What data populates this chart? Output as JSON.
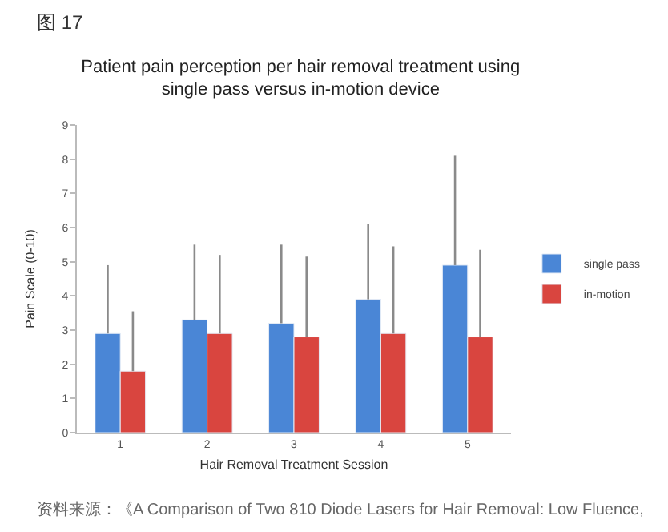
{
  "chart_data": {
    "type": "bar",
    "title": "Patient pain perception per hair removal treatment using\nsingle pass versus in-motion device",
    "xlabel": "Hair Removal Treatment Session",
    "ylabel": "Pain Scale (0-10)",
    "categories": [
      "1",
      "2",
      "3",
      "4",
      "5"
    ],
    "series": [
      {
        "name": "single pass",
        "color": "#4a86d6",
        "values": [
          2.9,
          3.3,
          3.2,
          3.9,
          4.9
        ],
        "errors": [
          [
            2.9,
            4.9
          ],
          [
            3.3,
            5.5
          ],
          [
            3.2,
            5.5
          ],
          [
            3.9,
            6.1
          ],
          [
            4.9,
            8.1
          ]
        ]
      },
      {
        "name": "in-motion",
        "color": "#d9453f",
        "values": [
          1.8,
          2.9,
          2.8,
          2.9,
          2.8
        ],
        "errors": [
          [
            1.8,
            3.55
          ],
          [
            2.9,
            5.2
          ],
          [
            2.8,
            5.15
          ],
          [
            2.9,
            5.45
          ],
          [
            2.8,
            5.35
          ]
        ]
      }
    ],
    "ylim": [
      0,
      9
    ],
    "yticks": [
      0,
      1,
      2,
      3,
      4,
      5,
      6,
      7,
      8,
      9
    ],
    "legend": "right",
    "annotations": [
      "图 17",
      "资料来源：《A Comparison of Two 810 Diode Lasers for Hair Removal: Low Fluence,"
    ]
  }
}
